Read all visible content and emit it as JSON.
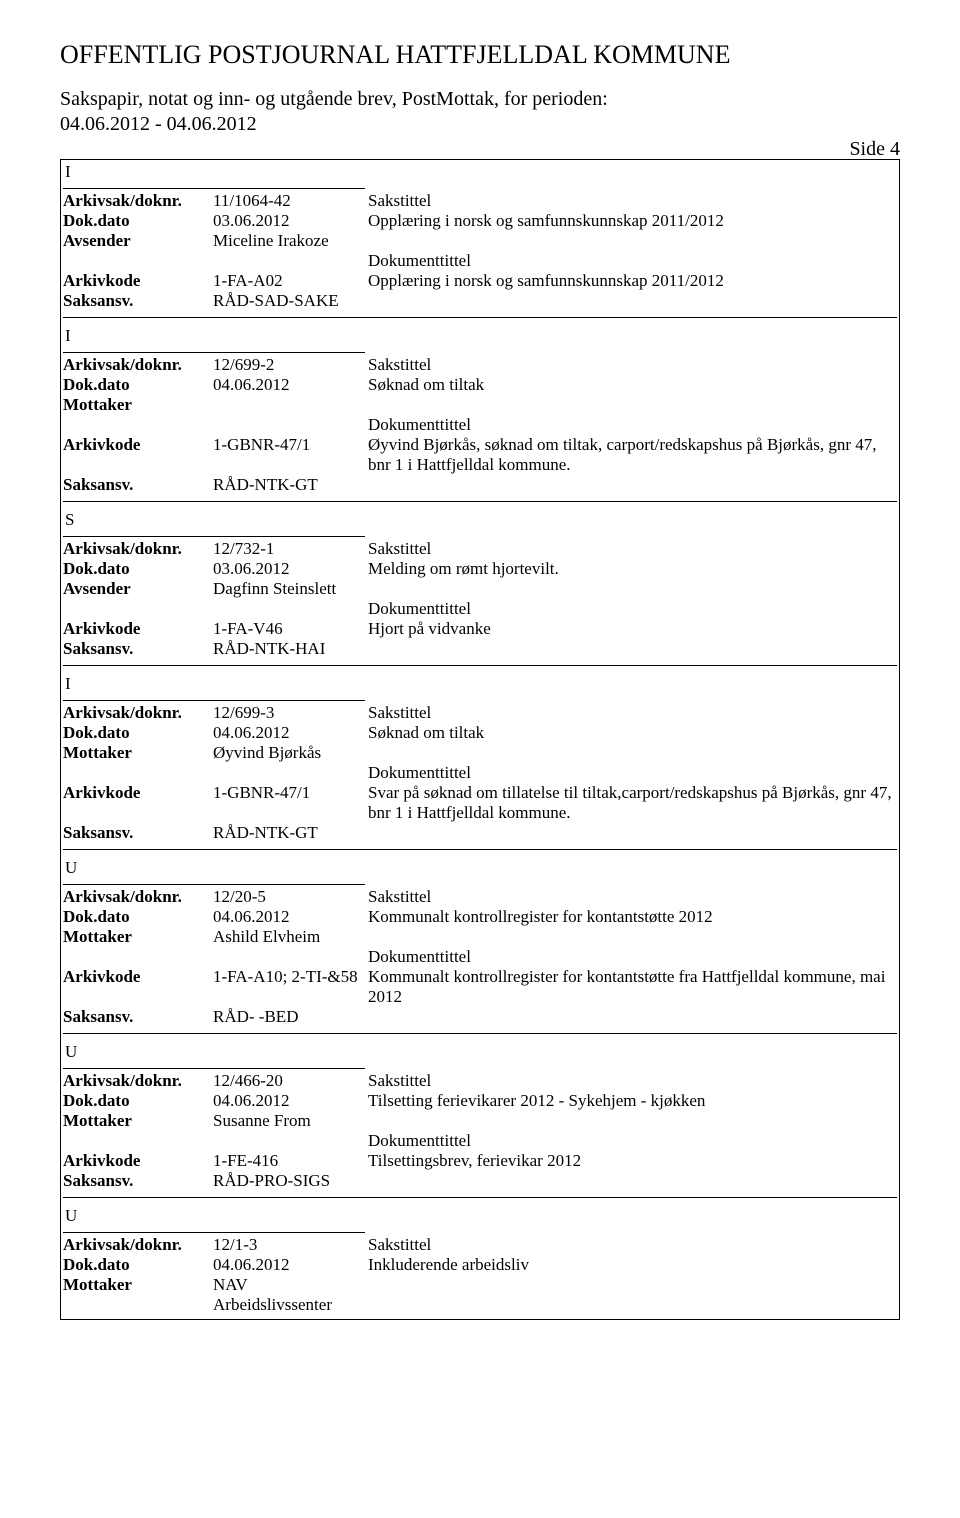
{
  "header": {
    "title": "OFFENTLIG POSTJOURNAL HATTFJELLDAL KOMMUNE",
    "subtitle_line1": "Sakspapir, notat og inn- og utgående brev, PostMottak, for perioden:",
    "subtitle_line2": "04.06.2012 - 04.06.2012",
    "page_label": "Side 4"
  },
  "labels": {
    "arkivsak": "Arkivsak/doknr.",
    "dokdato": "Dok.dato",
    "avsender": "Avsender",
    "mottaker": "Mottaker",
    "arkivkode": "Arkivkode",
    "saksansv": "Saksansv.",
    "sakstittel": "Sakstittel",
    "dokumenttittel": "Dokumenttittel"
  },
  "entries": [
    {
      "type": "I",
      "arkivsak": "11/1064-42",
      "dokdato": "03.06.2012",
      "party_label": "Avsender",
      "party": "Miceline Irakoze",
      "arkivkode": "1-FA-A02",
      "saksansv": "RÅD-SAD-SAKE",
      "sakstittel": "Opplæring i norsk og samfunnskunnskap 2011/2012",
      "dokumenttittel": "Opplæring i norsk og samfunnskunnskap 2011/2012"
    },
    {
      "type": "I",
      "arkivsak": "12/699-2",
      "dokdato": "04.06.2012",
      "party_label": "Mottaker",
      "party": "",
      "arkivkode": "1-GBNR-47/1",
      "saksansv": "RÅD-NTK-GT",
      "sakstittel": "Søknad om tiltak",
      "dokumenttittel": "Øyvind Bjørkås, søknad om tiltak, carport/redskapshus på Bjørkås, gnr 47, bnr 1 i Hattfjelldal kommune."
    },
    {
      "type": "S",
      "arkivsak": "12/732-1",
      "dokdato": "03.06.2012",
      "party_label": "Avsender",
      "party": "Dagfinn Steinslett",
      "arkivkode": "1-FA-V46",
      "saksansv": "RÅD-NTK-HAI",
      "sakstittel": "Melding om rømt hjortevilt.",
      "dokumenttittel": "Hjort på vidvanke"
    },
    {
      "type": "I",
      "arkivsak": "12/699-3",
      "dokdato": "04.06.2012",
      "party_label": "Mottaker",
      "party": "Øyvind Bjørkås",
      "arkivkode": "1-GBNR-47/1",
      "saksansv": "RÅD-NTK-GT",
      "sakstittel": "Søknad om tiltak",
      "dokumenttittel": "Svar på søknad om tillatelse til tiltak,carport/redskapshus på Bjørkås, gnr 47, bnr 1 i Hattfjelldal kommune."
    },
    {
      "type": "U",
      "arkivsak": "12/20-5",
      "dokdato": "04.06.2012",
      "party_label": "Mottaker",
      "party": "Ashild Elvheim",
      "arkivkode": "1-FA-A10; 2-TI-&58",
      "saksansv": "RÅD- -BED",
      "sakstittel": "Kommunalt kontrollregister for kontantstøtte 2012",
      "dokumenttittel": "Kommunalt kontrollregister for kontantstøtte fra Hattfjelldal kommune, mai 2012"
    },
    {
      "type": "U",
      "arkivsak": "12/466-20",
      "dokdato": "04.06.2012",
      "party_label": "Mottaker",
      "party": "Susanne From",
      "arkivkode": "1-FE-416",
      "saksansv": "RÅD-PRO-SIGS",
      "sakstittel": "Tilsetting ferievikarer 2012 - Sykehjem - kjøkken",
      "dokumenttittel": "Tilsettingsbrev, ferievikar 2012"
    },
    {
      "type": "U",
      "arkivsak": "12/1-3",
      "dokdato": "04.06.2012",
      "party_label": "Mottaker",
      "party": "NAV Arbeidslivssenter",
      "sakstittel": "Inkluderende arbeidsliv",
      "partial": true
    }
  ]
}
